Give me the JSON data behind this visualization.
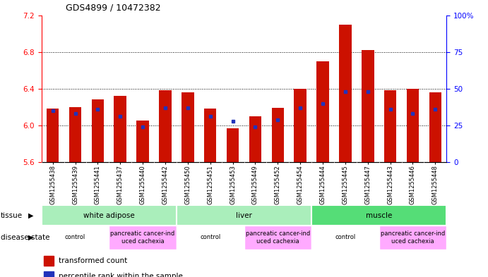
{
  "title": "GDS4899 / 10472382",
  "samples": [
    "GSM1255438",
    "GSM1255439",
    "GSM1255441",
    "GSM1255437",
    "GSM1255440",
    "GSM1255442",
    "GSM1255450",
    "GSM1255451",
    "GSM1255453",
    "GSM1255449",
    "GSM1255452",
    "GSM1255454",
    "GSM1255444",
    "GSM1255445",
    "GSM1255447",
    "GSM1255443",
    "GSM1255446",
    "GSM1255448"
  ],
  "red_values": [
    6.18,
    6.2,
    6.28,
    6.32,
    6.05,
    6.38,
    6.36,
    6.18,
    5.97,
    6.1,
    6.19,
    6.4,
    6.7,
    7.1,
    6.82,
    6.38,
    6.4,
    6.36
  ],
  "blue_pct": [
    35,
    33,
    36,
    31,
    24,
    37,
    37,
    31,
    28,
    24,
    29,
    37,
    40,
    48,
    48,
    36,
    33,
    36
  ],
  "ymin": 5.6,
  "ymax": 7.2,
  "yticks_left": [
    5.6,
    6.0,
    6.4,
    6.8,
    7.2
  ],
  "yticks_right": [
    0,
    25,
    50,
    75,
    100
  ],
  "bar_color": "#cc1100",
  "blue_color": "#2233bb",
  "bar_width": 0.55,
  "tissue_groups": [
    {
      "label": "white adipose",
      "start": 0,
      "end": 6,
      "color": "#aaeebb"
    },
    {
      "label": "liver",
      "start": 6,
      "end": 12,
      "color": "#aaeebb"
    },
    {
      "label": "muscle",
      "start": 12,
      "end": 18,
      "color": "#55dd77"
    }
  ],
  "disease_groups": [
    {
      "label": "control",
      "start": 0,
      "end": 3,
      "color": "#ffffff"
    },
    {
      "label": "pancreatic cancer-ind\nuced cachexia",
      "start": 3,
      "end": 6,
      "color": "#ffaaff"
    },
    {
      "label": "control",
      "start": 6,
      "end": 9,
      "color": "#ffffff"
    },
    {
      "label": "pancreatic cancer-ind\nuced cachexia",
      "start": 9,
      "end": 12,
      "color": "#ffaaff"
    },
    {
      "label": "control",
      "start": 12,
      "end": 15,
      "color": "#ffffff"
    },
    {
      "label": "pancreatic cancer-ind\nuced cachexia",
      "start": 15,
      "end": 18,
      "color": "#ffaaff"
    }
  ]
}
